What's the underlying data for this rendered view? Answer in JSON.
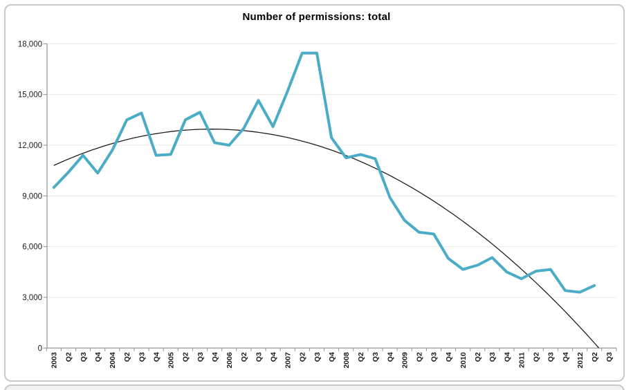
{
  "chart_data": {
    "type": "line",
    "title": "Number of permissions: total",
    "legend": "none",
    "grid": "horizontal",
    "categories": [
      "2003",
      "Q2",
      "Q3",
      "Q4",
      "2004",
      "Q2",
      "Q3",
      "Q4",
      "2005",
      "Q2",
      "Q3",
      "Q4",
      "2006",
      "Q2",
      "Q3",
      "Q4",
      "2007",
      "Q2",
      "Q3",
      "Q4",
      "2008",
      "Q2",
      "Q3",
      "Q4",
      "2009",
      "Q2",
      "Q3",
      "Q4",
      "2010",
      "Q2",
      "Q3",
      "Q4",
      "2011",
      "Q2",
      "Q3",
      "Q4",
      "2012",
      "Q2",
      "Q3"
    ],
    "series": [
      {
        "name": "Number of permissions: total",
        "color": "#4bacc6",
        "values": [
          9500,
          10400,
          11400,
          10350,
          11700,
          13500,
          13900,
          11400,
          11450,
          13500,
          13950,
          12150,
          12000,
          13000,
          14650,
          13100,
          15200,
          17450,
          17450,
          12450,
          11250,
          11450,
          11200,
          8900,
          7550,
          6850,
          6750,
          5300,
          4650,
          4900,
          5350,
          4500,
          4100,
          4550,
          4650,
          3400,
          3300,
          3700,
          null
        ]
      }
    ],
    "trendline": {
      "type": "polynomial-order-2",
      "color": "#1f1f1f",
      "start_index": 0,
      "start_value": 10800,
      "peak_index": 10.8,
      "peak_value": 12950,
      "zero_cross_index": 37.3
    },
    "y_axis": {
      "min": 0,
      "max": 18000,
      "step": 3000,
      "tick_labels": [
        "0",
        "3,000",
        "6,000",
        "9,000",
        "12,000",
        "15,000",
        "18,000"
      ]
    },
    "x_axis": {
      "label_rotation_deg": 90
    }
  },
  "colors": {
    "accent": "#4bacc6",
    "trend": "#1f1f1f",
    "grid": "#edeae4",
    "axis": "#8f8f8f",
    "text": "#1a1a1a",
    "frame": "#c9c9c9"
  }
}
